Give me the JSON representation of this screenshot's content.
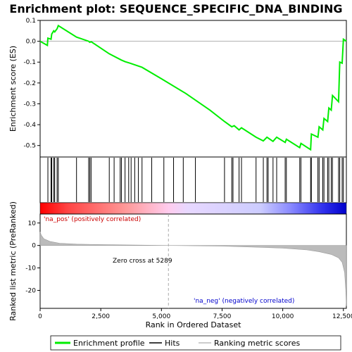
{
  "chart_data": {
    "type": "line",
    "title": "Enrichment plot: SEQUENCE_SPECIFIC_DNA_BINDING",
    "n_genes": 12623,
    "x_ticks": [
      0,
      2500,
      5000,
      7500,
      10000,
      12500
    ],
    "x_tick_labels": [
      "0",
      "2,500",
      "5,000",
      "7,500",
      "10,000",
      "12,500"
    ],
    "xlabel": "Rank in Ordered Dataset",
    "top": {
      "ylabel": "Enrichment score (ES)",
      "ylim": [
        -0.555,
        0.1
      ],
      "y_ticks": [
        0.1,
        0.0,
        -0.1,
        -0.2,
        -0.3,
        -0.4,
        -0.5
      ],
      "y_tick_labels": [
        "0.1",
        "0.0",
        "-0.1",
        "-0.2",
        "-0.3",
        "-0.4",
        "-0.5"
      ],
      "color": "#00ee00",
      "es_points": [
        [
          0,
          0.0
        ],
        [
          300,
          -0.02
        ],
        [
          320,
          0.015
        ],
        [
          450,
          0.01
        ],
        [
          480,
          0.035
        ],
        [
          560,
          0.05
        ],
        [
          600,
          0.045
        ],
        [
          700,
          0.06
        ],
        [
          750,
          0.075
        ],
        [
          1500,
          0.02
        ],
        [
          2000,
          0.0
        ],
        [
          2050,
          -0.005
        ],
        [
          2100,
          -0.002
        ],
        [
          2850,
          -0.06
        ],
        [
          3350,
          -0.09
        ],
        [
          3500,
          -0.098
        ],
        [
          3700,
          -0.105
        ],
        [
          4200,
          -0.125
        ],
        [
          5000,
          -0.18
        ],
        [
          6000,
          -0.25
        ],
        [
          7000,
          -0.33
        ],
        [
          7600,
          -0.385
        ],
        [
          7900,
          -0.41
        ],
        [
          8000,
          -0.405
        ],
        [
          8200,
          -0.425
        ],
        [
          8300,
          -0.415
        ],
        [
          8900,
          -0.46
        ],
        [
          9200,
          -0.478
        ],
        [
          9350,
          -0.46
        ],
        [
          9600,
          -0.48
        ],
        [
          9750,
          -0.46
        ],
        [
          10100,
          -0.485
        ],
        [
          10150,
          -0.47
        ],
        [
          10700,
          -0.51
        ],
        [
          10750,
          -0.49
        ],
        [
          11150,
          -0.52
        ],
        [
          11180,
          -0.445
        ],
        [
          11450,
          -0.46
        ],
        [
          11500,
          -0.41
        ],
        [
          11650,
          -0.425
        ],
        [
          11700,
          -0.37
        ],
        [
          11850,
          -0.385
        ],
        [
          11900,
          -0.32
        ],
        [
          12000,
          -0.33
        ],
        [
          12050,
          -0.26
        ],
        [
          12300,
          -0.29
        ],
        [
          12350,
          -0.1
        ],
        [
          12450,
          -0.105
        ],
        [
          12500,
          0.01
        ],
        [
          12623,
          0.0
        ]
      ]
    },
    "hits": [
      320,
      450,
      480,
      560,
      600,
      700,
      750,
      1500,
      2000,
      2050,
      2100,
      2850,
      3050,
      3300,
      3350,
      3500,
      3650,
      3750,
      3900,
      4050,
      4200,
      4600,
      5100,
      5500,
      5900,
      6400,
      7600,
      7900,
      7950,
      8200,
      8300,
      8900,
      9200,
      9350,
      9400,
      9600,
      9750,
      10100,
      10150,
      10700,
      10750,
      11150,
      11180,
      11450,
      11500,
      11650,
      11700,
      11850,
      11900,
      12000,
      12050,
      12300,
      12350,
      12450,
      12500
    ],
    "bottom": {
      "ylabel": "Ranked list metric (PreRanked)",
      "ylim": [
        -28,
        14
      ],
      "y_ticks": [
        10,
        0,
        -10,
        -20
      ],
      "y_tick_labels": [
        "10",
        "0",
        "-10",
        "-20"
      ],
      "metric_points": [
        [
          0,
          6
        ],
        [
          50,
          4.5
        ],
        [
          150,
          3
        ],
        [
          400,
          1.8
        ],
        [
          800,
          1.0
        ],
        [
          1500,
          0.6
        ],
        [
          3000,
          0.3
        ],
        [
          5289,
          0.0
        ],
        [
          7500,
          -0.3
        ],
        [
          9000,
          -0.8
        ],
        [
          10000,
          -1.2
        ],
        [
          11000,
          -2.0
        ],
        [
          11500,
          -2.8
        ],
        [
          12000,
          -4.0
        ],
        [
          12300,
          -5.5
        ],
        [
          12450,
          -7.5
        ],
        [
          12550,
          -12
        ],
        [
          12600,
          -20
        ],
        [
          12623,
          -27
        ]
      ],
      "pos_label": "'na_pos' (positively correlated)",
      "neg_label": "'na_neg' (negatively correlated)",
      "zero_cross_label": "Zero cross at 5289",
      "zero_cross": 5289
    },
    "legend": {
      "placement": "bottom",
      "items": [
        {
          "label": "Enrichment profile",
          "color": "#00ee00"
        },
        {
          "label": "Hits",
          "color": "#000000"
        },
        {
          "label": "Ranking metric scores",
          "color": "#bbbbbb"
        }
      ]
    }
  }
}
